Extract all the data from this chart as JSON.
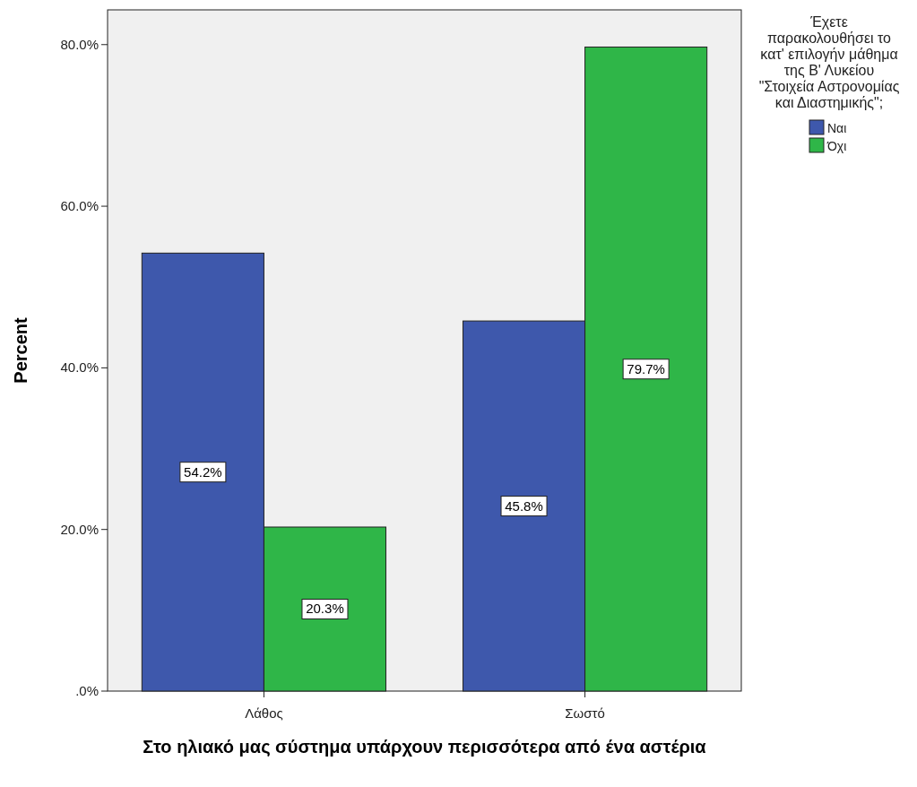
{
  "chart_data": {
    "type": "bar",
    "xlabel": "Στο ηλιακό μας σύστημα υπάρχουν περισσότερα από ένα αστέρια",
    "ylabel": "Percent",
    "legend_title": "Έχετε παρακολουθήσει το κατ' επιλογήν μάθημα της Β' Λυκείου \"Στοιχεία Αστρονομίας και Διαστημικής\";",
    "legend": "right",
    "categories": [
      "Λάθος",
      "Σωστό"
    ],
    "series": [
      {
        "name": "Ναι",
        "color": "#3e58ac",
        "values": [
          54.2,
          45.8
        ],
        "value_labels": [
          "54.2%",
          "45.8%"
        ]
      },
      {
        "name": "Όχι",
        "color": "#2fb648",
        "values": [
          20.3,
          79.7
        ],
        "value_labels": [
          "20.3%",
          "79.7%"
        ]
      }
    ],
    "ylim": [
      0,
      84.3
    ],
    "yticks": [
      {
        "value": 0,
        "label": ".0%"
      },
      {
        "value": 20,
        "label": "20.0%"
      },
      {
        "value": 40,
        "label": "40.0%"
      },
      {
        "value": 60,
        "label": "60.0%"
      },
      {
        "value": 80,
        "label": "80.0%"
      }
    ],
    "grid": false
  }
}
